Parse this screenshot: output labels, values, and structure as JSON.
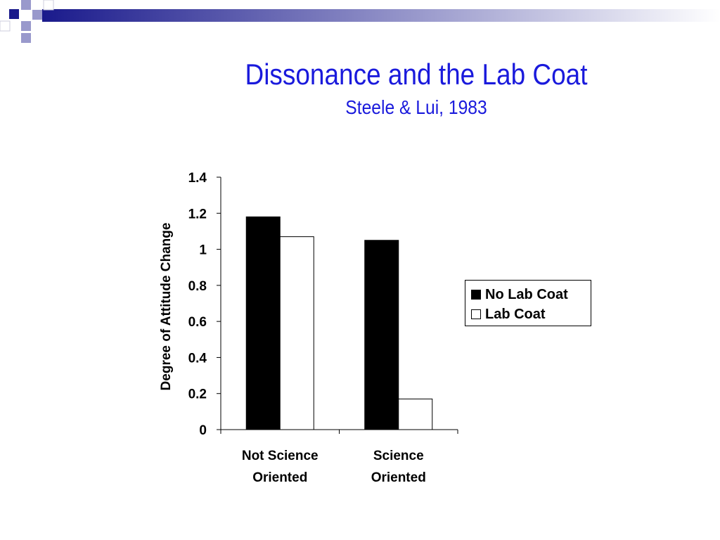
{
  "colors": {
    "accent": "#1a1adc",
    "deco_dark": "#1a1a8c",
    "deco_light": "#9999cc"
  },
  "slide": {
    "title": "Dissonance and the Lab Coat",
    "subtitle": "Steele & Lui, 1983"
  },
  "chart_data": {
    "type": "bar",
    "title": "",
    "xlabel": "",
    "ylabel": "Degree of Attitude Change",
    "ylim": [
      0,
      1.4
    ],
    "yticks": [
      "0",
      "0.2",
      "0.4",
      "0.6",
      "0.8",
      "1",
      "1.2",
      "1.4"
    ],
    "categories": [
      [
        "Not Science",
        "Oriented"
      ],
      [
        "Science",
        "Oriented"
      ]
    ],
    "series": [
      {
        "name": "No Lab Coat",
        "values": [
          1.18,
          1.05
        ],
        "color": "#000000"
      },
      {
        "name": "Lab Coat",
        "values": [
          1.07,
          0.17
        ],
        "color": "#ffffff"
      }
    ],
    "grid": false,
    "legend_position": "right"
  }
}
